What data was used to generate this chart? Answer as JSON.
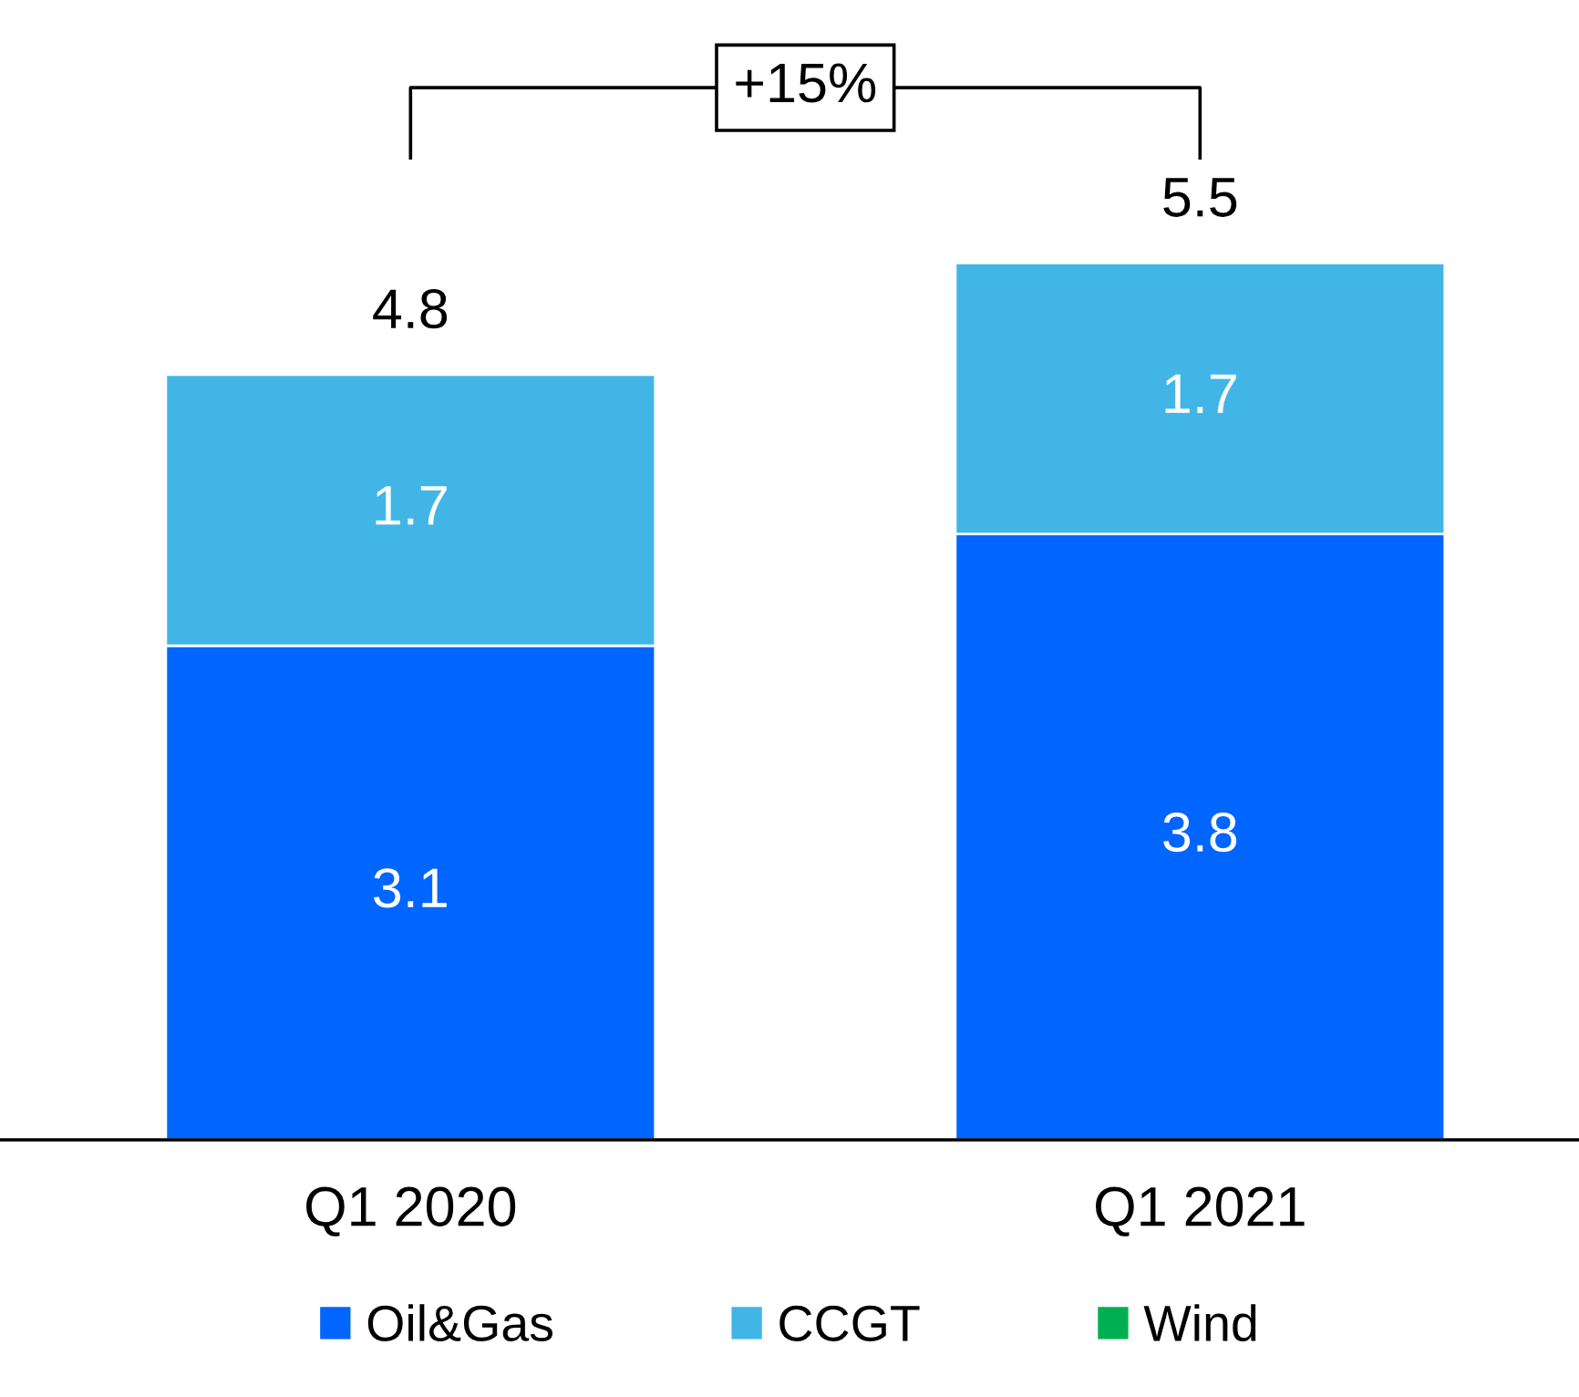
{
  "chart_data": {
    "type": "bar",
    "stacked": true,
    "data_labels": true,
    "categories": [
      "Q1 2020",
      "Q1 2021"
    ],
    "series": [
      {
        "name": "Oil&Gas",
        "color": "#0066ff",
        "values": [
          3.1,
          3.8
        ]
      },
      {
        "name": "CCGT",
        "color": "#41b6e6",
        "values": [
          1.7,
          1.7
        ]
      },
      {
        "name": "Wind",
        "color": "#00b050",
        "values": [
          null,
          null
        ]
      }
    ],
    "totals": [
      "4.8",
      "5.5"
    ],
    "annotations": [
      "+15%"
    ],
    "legend": "bottom",
    "grid": false
  }
}
